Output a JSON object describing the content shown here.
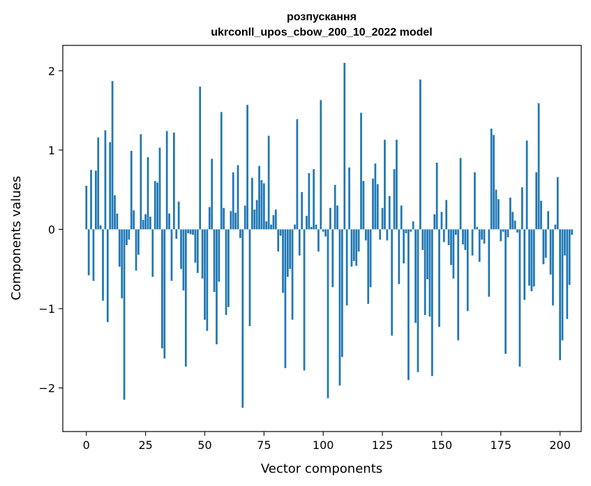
{
  "chart_data": {
    "type": "bar",
    "title_line1": "розпускання",
    "title_line2": "ukrconll_upos_cbow_200_10_2022 model",
    "xlabel": "Vector components",
    "ylabel": "Components values",
    "xlim": [
      -9.95,
      208.95
    ],
    "ylim": [
      -2.55,
      2.32
    ],
    "xticks": [
      0,
      25,
      50,
      75,
      100,
      125,
      150,
      175,
      200
    ],
    "xtick_labels": [
      "0",
      "25",
      "50",
      "75",
      "100",
      "125",
      "150",
      "175",
      "200"
    ],
    "yticks": [
      -2,
      -1,
      0,
      1,
      2
    ],
    "ytick_labels": [
      "−2",
      "−1",
      "0",
      "1",
      "2"
    ],
    "bar_color": "#1f77b4",
    "grid": false,
    "values": [
      0.55,
      -0.58,
      0.75,
      -0.65,
      0.74,
      1.16,
      0.05,
      -0.9,
      1.25,
      -1.17,
      1.1,
      1.87,
      0.43,
      0.2,
      -0.47,
      -0.87,
      -2.15,
      -0.2,
      -0.13,
      0.99,
      0.24,
      -0.52,
      -0.32,
      1.2,
      0.12,
      0.19,
      0.91,
      0.16,
      -0.6,
      0.61,
      0.59,
      1.03,
      -1.5,
      -1.63,
      1.24,
      0.2,
      -0.65,
      1.22,
      -0.12,
      0.35,
      -0.5,
      -0.77,
      -1.73,
      -0.05,
      -0.06,
      -0.07,
      -0.42,
      -0.55,
      1.8,
      -0.62,
      -1.14,
      -1.28,
      0.28,
      0.89,
      -0.79,
      -1.45,
      -0.66,
      1.48,
      0.27,
      -1.08,
      -0.98,
      0.23,
      0.72,
      0.21,
      0.81,
      -0.11,
      -2.25,
      0.3,
      1.57,
      -1.22,
      0.65,
      0.25,
      0.37,
      0.8,
      0.62,
      0.58,
      0.1,
      1.18,
      0.06,
      0.18,
      0.25,
      -0.28,
      -0.08,
      -0.8,
      -1.75,
      -0.6,
      -0.5,
      -1.14,
      0.06,
      1.39,
      -0.33,
      0.47,
      -1.78,
      0.17,
      0.71,
      0.03,
      0.76,
      0.06,
      -0.28,
      1.63,
      -0.03,
      -0.09,
      -2.13,
      0.27,
      -0.73,
      0.56,
      0.3,
      -1.97,
      -1.61,
      2.1,
      -0.96,
      0.78,
      -0.47,
      -0.4,
      -0.46,
      -0.28,
      1.47,
      0.61,
      -0.14,
      -0.94,
      -0.73,
      0.64,
      0.83,
      0.57,
      -0.13,
      0.27,
      1.13,
      -0.14,
      0.42,
      -1.34,
      0.76,
      1.13,
      -0.69,
      0.3,
      -0.43,
      -0.05,
      -1.9,
      -0.03,
      0.1,
      -1.18,
      -1.8,
      1.89,
      -0.26,
      -1.08,
      -0.63,
      -1.1,
      -1.85,
      0.19,
      0.84,
      -1.23,
      0.22,
      -0.16,
      0.37,
      -0.2,
      -0.45,
      -0.62,
      -0.07,
      -1.4,
      0.9,
      -0.19,
      -0.26,
      -1.03,
      0.0,
      -0.33,
      0.72,
      0.03,
      -0.41,
      -0.13,
      -0.18,
      0.0,
      -0.85,
      1.27,
      1.19,
      0.5,
      0.38,
      -0.15,
      -0.03,
      -1.57,
      -0.1,
      0.4,
      0.22,
      0.11,
      -0.04,
      -1.73,
      0.53,
      -0.89,
      1.12,
      -0.71,
      -0.78,
      -0.72,
      0.72,
      1.59,
      0.36,
      -0.44,
      -0.36,
      0.23,
      -0.57,
      -0.96,
      0.06,
      0.66,
      -1.65,
      -1.4,
      -0.33,
      -1.13,
      -0.7,
      -0.07
    ]
  }
}
